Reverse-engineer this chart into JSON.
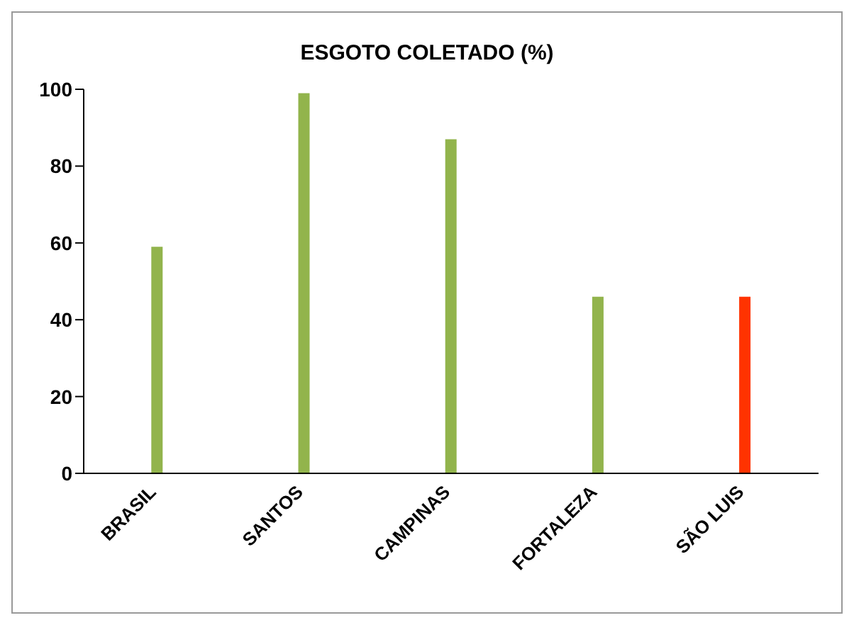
{
  "chart_data": {
    "type": "bar",
    "title": "ESGOTO COLETADO (%)",
    "categories": [
      "BRASIL",
      "SANTOS",
      "CAMPINAS",
      "FORTALEZA",
      "SÃO LUIS"
    ],
    "values": [
      59,
      99,
      87,
      46,
      46
    ],
    "colors": [
      "#92b44c",
      "#92b44c",
      "#92b44c",
      "#92b44c",
      "#ff3300"
    ],
    "ylim": [
      0,
      100
    ],
    "yticks": [
      0,
      20,
      40,
      60,
      80,
      100
    ],
    "grid": false,
    "legend": false
  }
}
